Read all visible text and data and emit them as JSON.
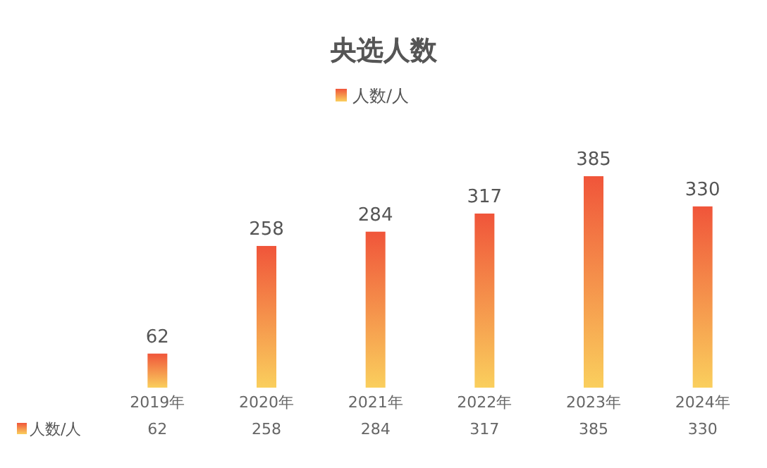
{
  "chart_data": {
    "type": "bar",
    "title": "央选人数",
    "categories": [
      "2019年",
      "2020年",
      "2021年",
      "2022年",
      "2023年",
      "2024年"
    ],
    "series": [
      {
        "name": "人数/人",
        "color": "#f0553a",
        "values": [
          62,
          258,
          284,
          317,
          385,
          330
        ],
        "value_labels": [
          "62",
          "258",
          "284",
          "317",
          "385",
          "330"
        ]
      }
    ],
    "annotations": [
      "62",
      "258",
      "284",
      "317",
      "385",
      "330"
    ],
    "data_labels": true,
    "legend": "top",
    "grid": false
  }
}
